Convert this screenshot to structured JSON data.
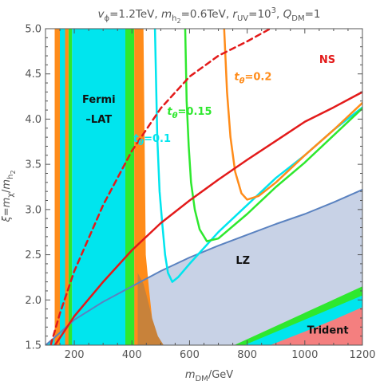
{
  "chart_data": {
    "type": "area",
    "title_parts": [
      {
        "t": "v",
        "s": "italic"
      },
      {
        "t": "ϕ",
        "s": "sub"
      },
      {
        "t": "=1.2TeV, "
      },
      {
        "t": "m",
        "s": "italic"
      },
      {
        "t": "h",
        "s": "sub"
      },
      {
        "t": "2",
        "s": "subsub"
      },
      {
        "t": "=0.6TeV, "
      },
      {
        "t": "r",
        "s": "italic"
      },
      {
        "t": "UV",
        "s": "sub"
      },
      {
        "t": "=10"
      },
      {
        "t": "3",
        "s": "sup"
      },
      {
        "t": ", "
      },
      {
        "t": "Q",
        "s": "italic"
      },
      {
        "t": "DM",
        "s": "sub"
      },
      {
        "t": "=1"
      }
    ],
    "xlabel_parts": [
      {
        "t": "m",
        "s": "italic"
      },
      {
        "t": "DM",
        "s": "sub"
      },
      {
        "t": "/GeV"
      }
    ],
    "ylabel_parts": [
      {
        "t": "ξ",
        "s": "italic"
      },
      {
        "t": "="
      },
      {
        "t": "m",
        "s": "italic"
      },
      {
        "t": "χ",
        "s": "sub"
      },
      {
        "t": "/"
      },
      {
        "t": "m",
        "s": "italic"
      },
      {
        "t": "h",
        "s": "sub"
      },
      {
        "t": "2",
        "s": "subsub"
      }
    ],
    "xlim": [
      100,
      1200
    ],
    "ylim": [
      1.5,
      5.0
    ],
    "xticks": [
      200,
      400,
      600,
      800,
      1000,
      1200
    ],
    "xtick_labels": [
      "200",
      "400",
      "600",
      "800",
      "1000",
      "1200"
    ],
    "yticks": [
      1.5,
      2.0,
      2.5,
      3.0,
      3.5,
      4.0,
      4.5,
      5.0
    ],
    "ytick_labels": [
      "1.5",
      "2.0",
      "2.5",
      "3.0",
      "3.5",
      "4.0",
      "4.5",
      "5.0"
    ],
    "colors": {
      "cyan": "#00e5ee",
      "orange": "#ff8c1a",
      "green": "#2ee82e",
      "brown": "#c8823a",
      "lz": "#c8d2e6",
      "lz_edge": "#5a82c0",
      "red": "#e31a1a",
      "trident": "#f47f7f",
      "axis": "#555555"
    },
    "regions": [
      {
        "name": "LZ excluded",
        "color": "lz",
        "points": [
          [
            100,
            1.5
          ],
          [
            130,
            1.58
          ],
          [
            200,
            1.78
          ],
          [
            300,
            1.98
          ],
          [
            400,
            2.15
          ],
          [
            500,
            2.32
          ],
          [
            600,
            2.47
          ],
          [
            700,
            2.6
          ],
          [
            800,
            2.72
          ],
          [
            900,
            2.84
          ],
          [
            1000,
            2.95
          ],
          [
            1100,
            3.08
          ],
          [
            1200,
            3.22
          ],
          [
            1200,
            1.5
          ]
        ]
      },
      {
        "name": "cyan under LZ",
        "color": "cyan",
        "points": [
          [
            100,
            1.5
          ],
          [
            110,
            1.53
          ],
          [
            130,
            1.58
          ],
          [
            200,
            1.78
          ],
          [
            300,
            1.98
          ],
          [
            400,
            2.15
          ],
          [
            430,
            2.2
          ],
          [
            430,
            1.5
          ]
        ]
      },
      {
        "name": "cyan band",
        "color": "cyan",
        "points": [
          [
            192,
            5.0
          ],
          [
            377,
            5.0
          ],
          [
            377,
            1.5
          ],
          [
            192,
            1.5
          ]
        ]
      },
      {
        "name": "orange band left",
        "color": "orange",
        "points": [
          [
            132,
            5.0
          ],
          [
            150,
            5.0
          ],
          [
            150,
            1.5
          ],
          [
            132,
            1.5
          ]
        ]
      },
      {
        "name": "cyan strip",
        "color": "cyan",
        "points": [
          [
            150,
            5.0
          ],
          [
            168,
            5.0
          ],
          [
            168,
            1.5
          ],
          [
            150,
            1.5
          ]
        ]
      },
      {
        "name": "orange band mid",
        "color": "orange",
        "points": [
          [
            168,
            5.0
          ],
          [
            180,
            5.0
          ],
          [
            180,
            1.5
          ],
          [
            168,
            1.5
          ]
        ]
      },
      {
        "name": "green band left",
        "color": "green",
        "points": [
          [
            180,
            5.0
          ],
          [
            192,
            5.0
          ],
          [
            192,
            1.5
          ],
          [
            180,
            1.5
          ]
        ]
      },
      {
        "name": "green band right",
        "color": "green",
        "points": [
          [
            377,
            2.5
          ],
          [
            377,
            5.0
          ],
          [
            408,
            5.0
          ],
          [
            408,
            1.5
          ],
          [
            377,
            1.5
          ]
        ]
      },
      {
        "name": "orange band right",
        "color": "orange",
        "points": [
          [
            408,
            5.0
          ],
          [
            440,
            5.0
          ],
          [
            448,
            2.5
          ],
          [
            460,
            2.1
          ],
          [
            470,
            1.8
          ],
          [
            480,
            1.5
          ],
          [
            408,
            1.5
          ]
        ]
      },
      {
        "name": "brown wedge",
        "color": "brown",
        "points": [
          [
            420,
            2.3
          ],
          [
            440,
            2.18
          ],
          [
            455,
            2.0
          ],
          [
            470,
            1.8
          ],
          [
            490,
            1.6
          ],
          [
            510,
            1.5
          ],
          [
            420,
            1.5
          ]
        ]
      },
      {
        "name": "green lower right",
        "color": "green",
        "points": [
          [
            755,
            1.5
          ],
          [
            1200,
            2.15
          ],
          [
            1200,
            1.5
          ]
        ]
      },
      {
        "name": "cyan lower right",
        "color": "cyan",
        "points": [
          [
            790,
            1.5
          ],
          [
            1200,
            2.05
          ],
          [
            1200,
            1.5
          ]
        ]
      },
      {
        "name": "Trident excluded",
        "color": "trident",
        "points": [
          [
            880,
            1.5
          ],
          [
            1000,
            1.65
          ],
          [
            1100,
            1.78
          ],
          [
            1200,
            1.92
          ],
          [
            1200,
            1.5
          ]
        ]
      }
    ],
    "series": [
      {
        "name": "LZ boundary",
        "color": "lz_edge",
        "dash": false,
        "width": 2,
        "points": [
          [
            100,
            1.5
          ],
          [
            130,
            1.58
          ],
          [
            200,
            1.78
          ],
          [
            300,
            1.98
          ],
          [
            400,
            2.15
          ],
          [
            500,
            2.32
          ],
          [
            600,
            2.47
          ],
          [
            700,
            2.6
          ],
          [
            800,
            2.72
          ],
          [
            900,
            2.84
          ],
          [
            1000,
            2.95
          ],
          [
            1100,
            3.08
          ],
          [
            1200,
            3.22
          ]
        ]
      },
      {
        "name": "tθ=0.1",
        "color": "cyan",
        "dash": false,
        "width": 2.5,
        "points": [
          [
            480,
            5.0
          ],
          [
            488,
            3.8
          ],
          [
            496,
            3.2
          ],
          [
            505,
            2.85
          ],
          [
            515,
            2.5
          ],
          [
            525,
            2.3
          ],
          [
            540,
            2.2
          ],
          [
            560,
            2.25
          ],
          [
            600,
            2.4
          ],
          [
            700,
            2.75
          ],
          [
            800,
            3.05
          ],
          [
            900,
            3.35
          ],
          [
            1000,
            3.6
          ],
          [
            1100,
            3.88
          ],
          [
            1200,
            4.13
          ]
        ]
      },
      {
        "name": "tθ=0.15",
        "color": "green",
        "dash": false,
        "width": 2.5,
        "points": [
          [
            585,
            5.0
          ],
          [
            590,
            4.2
          ],
          [
            597,
            3.7
          ],
          [
            605,
            3.3
          ],
          [
            618,
            3.0
          ],
          [
            635,
            2.78
          ],
          [
            660,
            2.65
          ],
          [
            700,
            2.68
          ],
          [
            800,
            2.95
          ],
          [
            900,
            3.25
          ],
          [
            1000,
            3.52
          ],
          [
            1100,
            3.82
          ],
          [
            1200,
            4.12
          ]
        ]
      },
      {
        "name": "tθ=0.2",
        "color": "orange",
        "dash": false,
        "width": 2.5,
        "points": [
          [
            720,
            5.0
          ],
          [
            730,
            4.3
          ],
          [
            742,
            3.8
          ],
          [
            758,
            3.42
          ],
          [
            780,
            3.18
          ],
          [
            800,
            3.11
          ],
          [
            840,
            3.15
          ],
          [
            900,
            3.3
          ],
          [
            1000,
            3.6
          ],
          [
            1100,
            3.88
          ],
          [
            1200,
            4.18
          ]
        ]
      },
      {
        "name": "red solid",
        "color": "red",
        "dash": false,
        "width": 2.5,
        "points": [
          [
            100,
            1.35
          ],
          [
            150,
            1.58
          ],
          [
            200,
            1.82
          ],
          [
            300,
            2.2
          ],
          [
            400,
            2.55
          ],
          [
            500,
            2.85
          ],
          [
            600,
            3.1
          ],
          [
            700,
            3.33
          ],
          [
            800,
            3.55
          ],
          [
            900,
            3.76
          ],
          [
            1000,
            3.97
          ],
          [
            1100,
            4.13
          ],
          [
            1200,
            4.3
          ]
        ]
      },
      {
        "name": "NS",
        "color": "red",
        "dash": true,
        "width": 2.5,
        "points": [
          [
            118,
            1.5
          ],
          [
            150,
            1.85
          ],
          [
            200,
            2.32
          ],
          [
            300,
            3.05
          ],
          [
            400,
            3.65
          ],
          [
            500,
            4.12
          ],
          [
            600,
            4.47
          ],
          [
            700,
            4.7
          ],
          [
            800,
            4.86
          ],
          [
            880,
            5.0
          ]
        ]
      }
    ],
    "annotations": [
      {
        "text": "Fermi",
        "x": 285,
        "y": 4.18,
        "color": "#111111"
      },
      {
        "text": "–LAT",
        "x": 285,
        "y": 3.96,
        "color": "#111111"
      },
      {
        "text": "LZ",
        "x": 785,
        "y": 2.4,
        "color": "#111111"
      },
      {
        "text": "Trident",
        "x": 1080,
        "y": 1.63,
        "color": "#111111"
      },
      {
        "text": "NS",
        "x": 1078,
        "y": 4.62,
        "color": "#e31a1a"
      },
      {
        "text": "tθ=0.2",
        "x": 820,
        "y": 4.43,
        "color": "#ff8c1a",
        "sub": true
      },
      {
        "text": "tθ=0.15",
        "x": 600,
        "y": 4.05,
        "color": "#2ee82e",
        "sub": true
      },
      {
        "text": "tθ=0.1",
        "x": 470,
        "y": 3.75,
        "color": "#00e5ee",
        "sub": true
      }
    ]
  }
}
